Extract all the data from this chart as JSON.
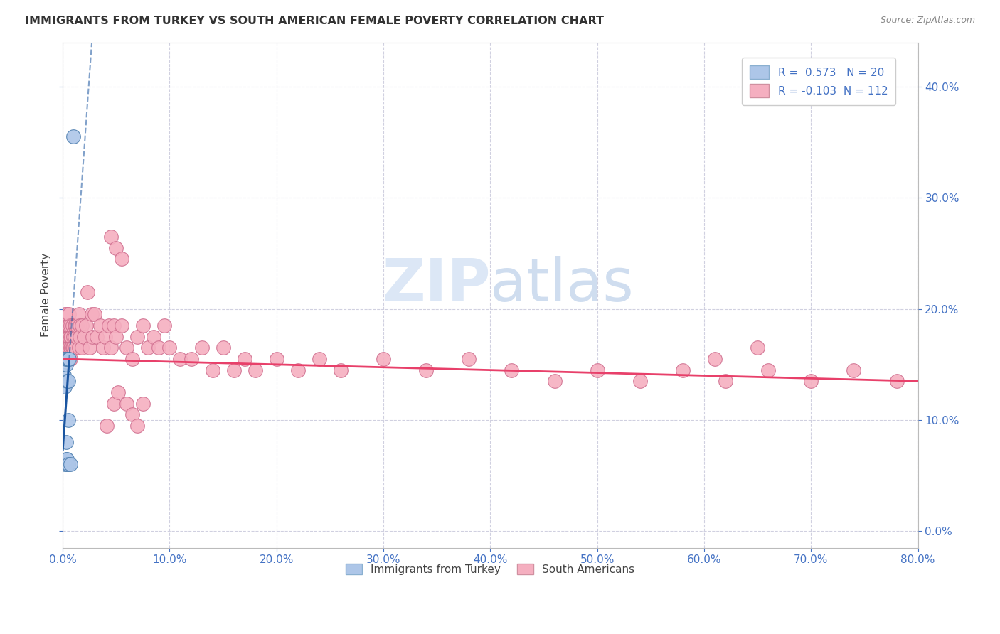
{
  "title": "IMMIGRANTS FROM TURKEY VS SOUTH AMERICAN FEMALE POVERTY CORRELATION CHART",
  "source": "Source: ZipAtlas.com",
  "ylabel": "Female Poverty",
  "legend_bottom": [
    "Immigrants from Turkey",
    "South Americans"
  ],
  "r_turkey": 0.573,
  "n_turkey": 20,
  "r_south": -0.103,
  "n_south": 112,
  "turkey_color": "#adc6e8",
  "south_color": "#f5afc0",
  "trend_turkey_color": "#1a55a0",
  "trend_south_color": "#e8406a",
  "background": "#ffffff",
  "grid_color": "#d0d0e0",
  "title_color": "#333333",
  "axis_color": "#4472c4",
  "xlim": [
    0.0,
    0.8
  ],
  "ylim": [
    -0.015,
    0.44
  ],
  "xticks": [
    0.0,
    0.1,
    0.2,
    0.3,
    0.4,
    0.5,
    0.6,
    0.7,
    0.8
  ],
  "yticks": [
    0.0,
    0.1,
    0.2,
    0.3,
    0.4
  ],
  "turkey_x": [
    0.001,
    0.001,
    0.002,
    0.002,
    0.002,
    0.003,
    0.003,
    0.003,
    0.003,
    0.004,
    0.004,
    0.004,
    0.004,
    0.005,
    0.005,
    0.005,
    0.005,
    0.006,
    0.007,
    0.01
  ],
  "turkey_y": [
    0.155,
    0.14,
    0.155,
    0.13,
    0.06,
    0.15,
    0.08,
    0.155,
    0.065,
    0.135,
    0.155,
    0.06,
    0.065,
    0.1,
    0.135,
    0.155,
    0.06,
    0.155,
    0.06,
    0.355
  ],
  "south_x": [
    0.001,
    0.001,
    0.001,
    0.001,
    0.002,
    0.002,
    0.002,
    0.002,
    0.002,
    0.002,
    0.003,
    0.003,
    0.003,
    0.003,
    0.003,
    0.004,
    0.004,
    0.004,
    0.004,
    0.005,
    0.005,
    0.005,
    0.005,
    0.005,
    0.006,
    0.006,
    0.006,
    0.006,
    0.007,
    0.007,
    0.007,
    0.007,
    0.008,
    0.008,
    0.009,
    0.009,
    0.01,
    0.01,
    0.011,
    0.011,
    0.012,
    0.012,
    0.013,
    0.013,
    0.015,
    0.015,
    0.016,
    0.016,
    0.018,
    0.018,
    0.02,
    0.022,
    0.023,
    0.025,
    0.027,
    0.028,
    0.03,
    0.032,
    0.035,
    0.038,
    0.04,
    0.043,
    0.045,
    0.048,
    0.05,
    0.055,
    0.06,
    0.065,
    0.07,
    0.075,
    0.08,
    0.085,
    0.09,
    0.095,
    0.1,
    0.11,
    0.12,
    0.13,
    0.14,
    0.15,
    0.16,
    0.17,
    0.18,
    0.2,
    0.22,
    0.24,
    0.26,
    0.3,
    0.34,
    0.38,
    0.42,
    0.46,
    0.5,
    0.54,
    0.58,
    0.62,
    0.66,
    0.7,
    0.74,
    0.78,
    0.61,
    0.65,
    0.045,
    0.05,
    0.055,
    0.048,
    0.052,
    0.041,
    0.06,
    0.065,
    0.07,
    0.075
  ],
  "south_y": [
    0.185,
    0.175,
    0.175,
    0.16,
    0.185,
    0.175,
    0.165,
    0.185,
    0.175,
    0.195,
    0.18,
    0.17,
    0.165,
    0.185,
    0.175,
    0.185,
    0.175,
    0.165,
    0.195,
    0.175,
    0.185,
    0.165,
    0.175,
    0.185,
    0.175,
    0.185,
    0.165,
    0.195,
    0.175,
    0.165,
    0.185,
    0.155,
    0.175,
    0.165,
    0.185,
    0.165,
    0.175,
    0.165,
    0.185,
    0.175,
    0.185,
    0.165,
    0.175,
    0.185,
    0.195,
    0.165,
    0.185,
    0.175,
    0.165,
    0.185,
    0.175,
    0.185,
    0.215,
    0.165,
    0.195,
    0.175,
    0.195,
    0.175,
    0.185,
    0.165,
    0.175,
    0.185,
    0.165,
    0.185,
    0.175,
    0.185,
    0.165,
    0.155,
    0.175,
    0.185,
    0.165,
    0.175,
    0.165,
    0.185,
    0.165,
    0.155,
    0.155,
    0.165,
    0.145,
    0.165,
    0.145,
    0.155,
    0.145,
    0.155,
    0.145,
    0.155,
    0.145,
    0.155,
    0.145,
    0.155,
    0.145,
    0.135,
    0.145,
    0.135,
    0.145,
    0.135,
    0.145,
    0.135,
    0.145,
    0.135,
    0.155,
    0.165,
    0.265,
    0.255,
    0.245,
    0.115,
    0.125,
    0.095,
    0.115,
    0.105,
    0.095,
    0.115
  ]
}
